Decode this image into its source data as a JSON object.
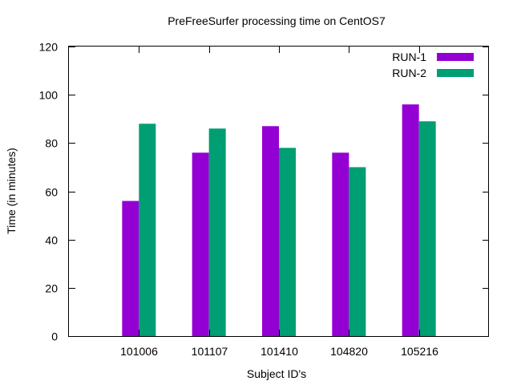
{
  "chart_data": {
    "type": "bar",
    "title": "PreFreeSurfer processing time on CentOS7",
    "xlabel": "Subject ID's",
    "ylabel": "Time (in minutes)",
    "categories": [
      "101006",
      "101107",
      "101410",
      "104820",
      "105216"
    ],
    "ylim": [
      0,
      120
    ],
    "yticks": [
      0,
      20,
      40,
      60,
      80,
      100,
      120
    ],
    "grid": false,
    "legend_position": "top-right",
    "series": [
      {
        "name": "RUN-1",
        "color": "#9400d3",
        "values": [
          56,
          76,
          87,
          76,
          96
        ]
      },
      {
        "name": "RUN-2",
        "color": "#009e73",
        "values": [
          88,
          86,
          78,
          70,
          89
        ]
      }
    ]
  }
}
